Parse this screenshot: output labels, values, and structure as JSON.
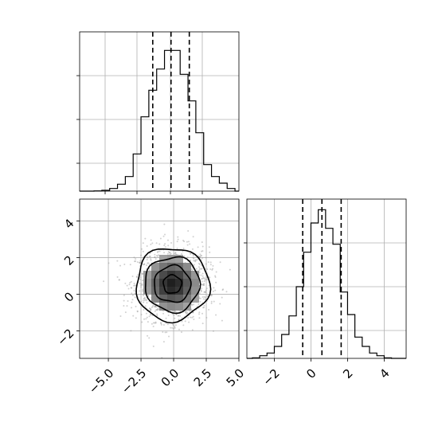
{
  "chart_data": [
    {
      "type": "histogram",
      "panel": "top-left",
      "variable": "x",
      "xlim": [
        -7.2,
        5.0
      ],
      "bin_edges": [
        -6.1,
        -5.5,
        -4.9,
        -4.3,
        -3.7,
        -3.1,
        -2.5,
        -1.9,
        -1.3,
        -0.7,
        -0.1,
        0.5,
        1.1,
        1.7,
        2.3,
        2.9,
        3.5,
        4.1,
        4.7
      ],
      "counts": [
        1,
        3,
        10,
        26,
        55,
        140,
        280,
        380,
        460,
        530,
        530,
        440,
        340,
        220,
        100,
        55,
        30,
        10
      ],
      "ylim": [
        0,
        600
      ],
      "quantiles": [
        -1.6,
        -0.2,
        1.2
      ],
      "grid": true,
      "y_tick_labels_shown": false,
      "x_tick_labels_shown": false
    },
    {
      "type": "scatter-density-contour",
      "panel": "bottom-left",
      "x_variable": "x",
      "y_variable": "y",
      "xlim": [
        -7.2,
        5.0
      ],
      "ylim": [
        -3.5,
        5.2
      ],
      "x_ticks": [
        -5.0,
        -2.5,
        0.0,
        2.5,
        5.0
      ],
      "x_tick_labels": [
        "−5.0",
        "−2.5",
        "0.0",
        "2.5",
        "5.0"
      ],
      "y_ticks": [
        -2,
        0,
        2,
        4
      ],
      "y_tick_labels": [
        "−2",
        "0",
        "2",
        "4"
      ],
      "center": [
        -0.1,
        0.55
      ],
      "sigma": [
        1.4,
        1.0
      ],
      "contour_levels_sigma": [
        0.5,
        1.0,
        1.5,
        2.0
      ],
      "grid": true
    },
    {
      "type": "histogram",
      "panel": "bottom-right",
      "variable": "y",
      "xlim": [
        -3.5,
        5.2
      ],
      "bin_edges": [
        -3.2,
        -2.8,
        -2.4,
        -2.0,
        -1.6,
        -1.2,
        -0.8,
        -0.4,
        0.0,
        0.4,
        0.8,
        1.2,
        1.6,
        2.0,
        2.4,
        2.8,
        3.2,
        3.6,
        4.0,
        4.4
      ],
      "counts": [
        2,
        10,
        20,
        45,
        90,
        160,
        270,
        400,
        510,
        560,
        490,
        430,
        250,
        165,
        80,
        45,
        20,
        10,
        2
      ],
      "ylim": [
        0,
        600
      ],
      "quantiles": [
        -0.45,
        0.6,
        1.65
      ],
      "x_ticks": [
        -2,
        0,
        2,
        4
      ],
      "x_tick_labels": [
        "−2",
        "0",
        "2",
        "4"
      ],
      "grid": true,
      "y_tick_labels_shown": false
    }
  ]
}
